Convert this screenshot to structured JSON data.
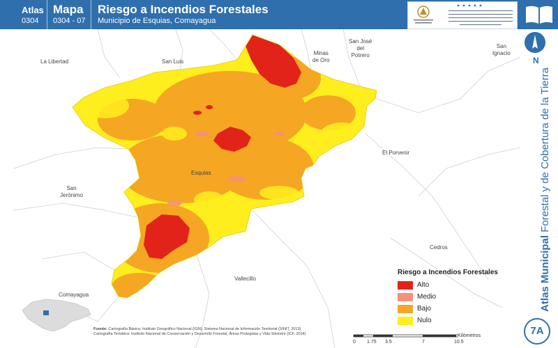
{
  "header": {
    "atlas_label": "Atlas",
    "atlas_code": "0304",
    "mapa_label": "Mapa",
    "mapa_code": "0304 - 07",
    "title": "Riesgo a Incendios Forestales",
    "subtitle": "Municipio de Esquias, Comayagua"
  },
  "logos": {
    "gov_text": "GOBIERNO DE LA REPÚBLICA DE HONDURAS",
    "icf_text": "INSTITUTO NACIONAL DE CONSERVACIÓN Y DESARROLLO FORESTAL, ÁREAS PROTEGIDAS Y VIDA SILVESTRE ICF"
  },
  "sidebar": {
    "north_label": "N",
    "vertical_title_bold": "Atlas Municipal",
    "vertical_title_rest": " Forestal y de Cobertura de la Tierra",
    "map_number": "7A"
  },
  "places": {
    "la_libertad": "La Libertad",
    "san_luis": "San Luis",
    "minas_de_oro": "Minas\nde Oro",
    "san_jose_del_potrero": "San José\ndel\nPotrero",
    "san_ignacio": "San\nIgnacio",
    "el_porvenir": "El Porvenir",
    "esquias": "Esquias",
    "san_jeronimo": "San\nJerónimo",
    "cedros": "Cedros",
    "vallecillo": "Vallecillo",
    "comayagua": "Comayagua"
  },
  "legend": {
    "title": "Riesgo a Incendios Forestales",
    "items": [
      {
        "label": "Alto",
        "color": "#e2231a"
      },
      {
        "label": "Medio",
        "color": "#f4917a"
      },
      {
        "label": "Bajo",
        "color": "#f5a623"
      },
      {
        "label": "Nulo",
        "color": "#ffee1e"
      }
    ]
  },
  "source": {
    "label": "Fuente:",
    "line1": "Cartografía Básica: Instituto Geográfico Nacional (IGN), Sistema Nacional de Información Territorial (SINIT, 2013)",
    "line2": "Cartografía Temática: Instituto Nacional de Conservación y Desarrollo Forestal, Áreas Protegidas y Vida Silvestre (ICF, 2014)"
  },
  "scale": {
    "ticks": [
      "0",
      "1.75",
      "3.5",
      "7",
      "10.5"
    ],
    "unit": "Kilómetros"
  },
  "colors": {
    "header_bg": "#2f6fad",
    "alto": "#e2231a",
    "medio": "#f4917a",
    "bajo": "#f5a623",
    "nulo": "#ffee1e"
  }
}
